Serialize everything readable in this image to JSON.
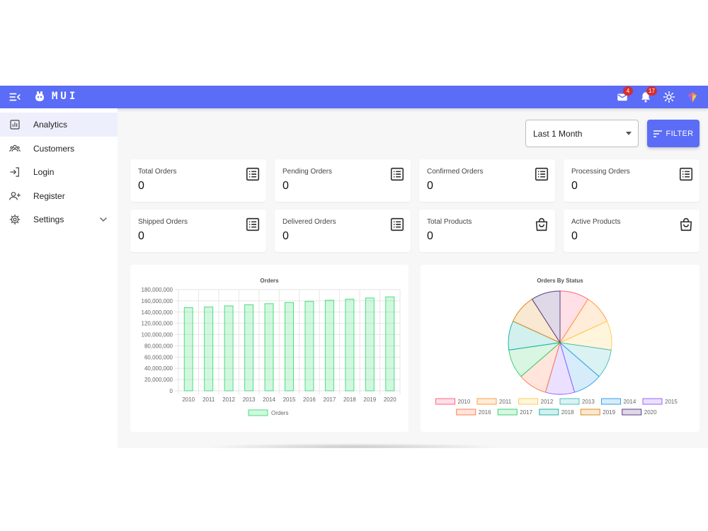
{
  "app": {
    "logo_text": "MUI",
    "accent": "#5b6cf6"
  },
  "appbar": {
    "mail_badge": "4",
    "notifications_badge": "17",
    "icons": [
      "menu-collapse-icon",
      "logo-icon",
      "mail-icon",
      "bell-icon",
      "sun-icon",
      "diamond-icon"
    ]
  },
  "sidebar": {
    "items": [
      {
        "label": "Analytics",
        "icon": "bar-chart-icon",
        "active": true
      },
      {
        "label": "Customers",
        "icon": "group-icon"
      },
      {
        "label": "Login",
        "icon": "login-icon"
      },
      {
        "label": "Register",
        "icon": "add-person-icon"
      },
      {
        "label": "Settings",
        "icon": "gear-icon",
        "expandable": true
      }
    ]
  },
  "filter": {
    "period": "Last 1 Month",
    "button_label": "FILTER"
  },
  "stats": [
    {
      "title": "Total Orders",
      "value": "0",
      "icon": "list-icon"
    },
    {
      "title": "Pending Orders",
      "value": "0",
      "icon": "list-icon"
    },
    {
      "title": "Confirmed Orders",
      "value": "0",
      "icon": "list-icon"
    },
    {
      "title": "Processing Orders",
      "value": "0",
      "icon": "list-icon"
    },
    {
      "title": "Shipped Orders",
      "value": "0",
      "icon": "list-icon"
    },
    {
      "title": "Delivered Orders",
      "value": "0",
      "icon": "list-icon"
    },
    {
      "title": "Total Products",
      "value": "0",
      "icon": "shopping-bag-icon"
    },
    {
      "title": "Active Products",
      "value": "0",
      "icon": "shopping-bag-icon"
    }
  ],
  "chart_data": [
    {
      "type": "bar",
      "title": "Orders",
      "categories": [
        "2010",
        "2011",
        "2012",
        "2013",
        "2014",
        "2015",
        "2016",
        "2017",
        "2018",
        "2019",
        "2020"
      ],
      "series": [
        {
          "name": "Orders",
          "values": [
            148000000,
            149000000,
            151000000,
            153000000,
            155000000,
            157000000,
            159000000,
            161000000,
            163000000,
            165000000,
            167000000
          ]
        }
      ],
      "ylim": [
        0,
        180000000
      ],
      "yticks": [
        "180,000,000",
        "160,000,000",
        "140,000,000",
        "120,000,000",
        "100,000,000",
        "80,000,000",
        "60,000,000",
        "40,000,000",
        "20,000,000",
        "0"
      ],
      "grid": true,
      "legend": "bottom",
      "color": "#4ade80"
    },
    {
      "type": "pie",
      "title": "Orders By Status",
      "labels": [
        "2010",
        "2011",
        "2012",
        "2013",
        "2014",
        "2015",
        "2016",
        "2017",
        "2018",
        "2019",
        "2020"
      ],
      "values": [
        1,
        1,
        1,
        1,
        1,
        1,
        1,
        1,
        1,
        1,
        1
      ],
      "colors": [
        "#ff6384",
        "#ff9f40",
        "#ffcd56",
        "#4bc0c0",
        "#36a2eb",
        "#9966ff",
        "#ff7f50",
        "#3cd070",
        "#20b2aa",
        "#e08a1e",
        "#5a3e85"
      ],
      "legend": "bottom"
    }
  ]
}
